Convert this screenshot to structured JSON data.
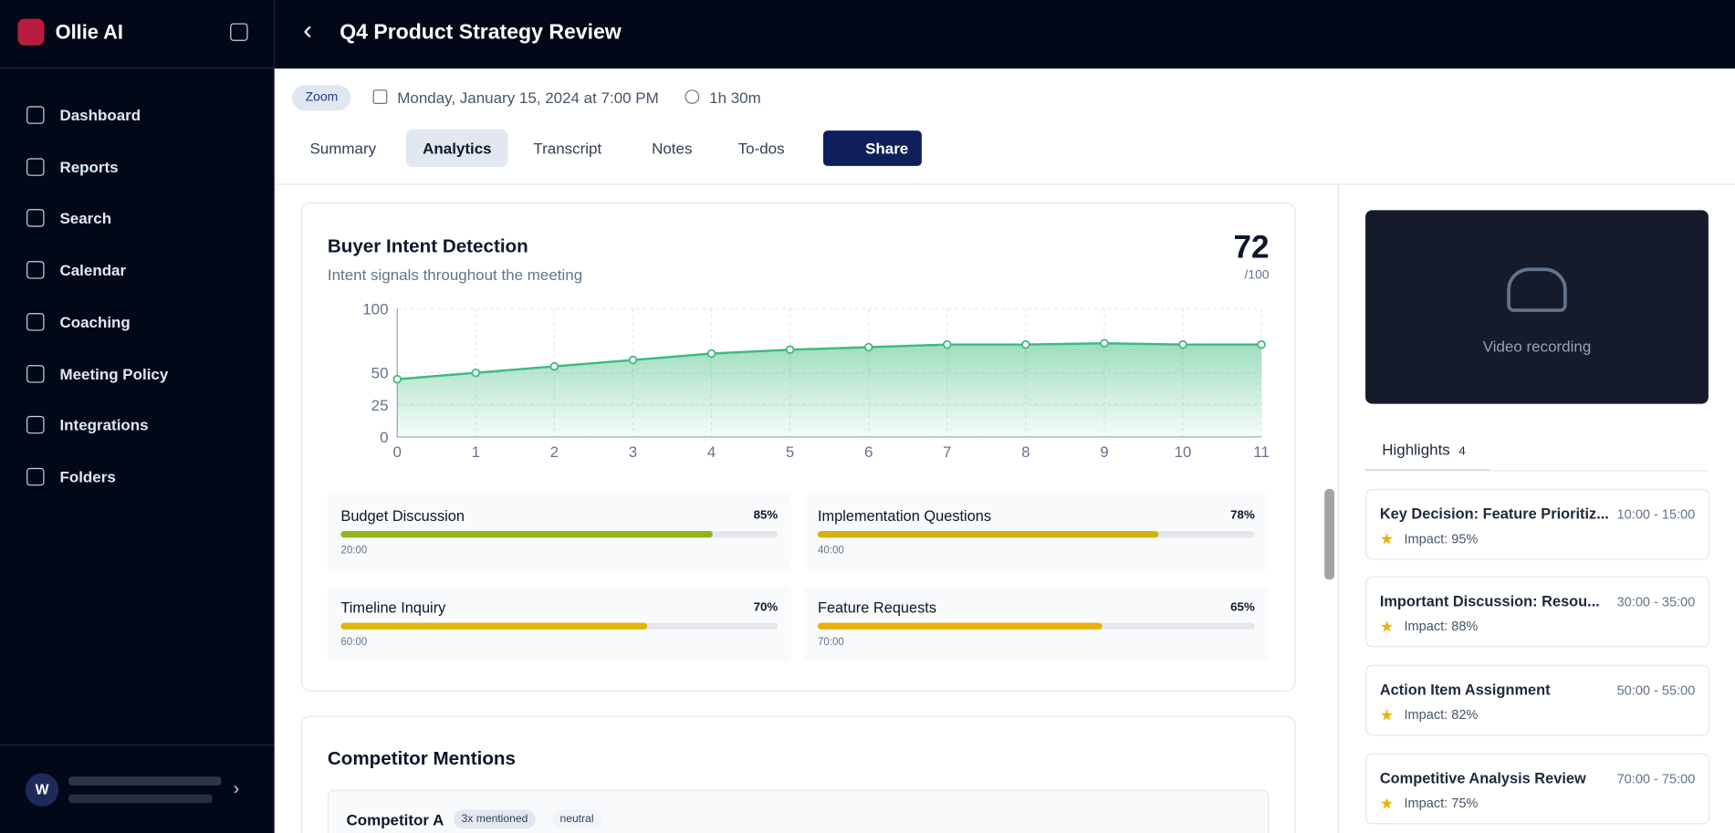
{
  "sidebar": {
    "brand": "Ollie AI",
    "nav": [
      "Dashboard",
      "Reports",
      "Search",
      "Calendar",
      "Coaching",
      "Meeting Policy",
      "Integrations",
      "Folders"
    ],
    "user_initial": "W"
  },
  "header": {
    "title": "Q4 Product Strategy Review",
    "platform": "Zoom",
    "date": "Monday, January 15, 2024 at 7:00 PM",
    "duration": "1h 30m",
    "tabs": [
      "Summary",
      "Analytics",
      "Transcript",
      "Notes",
      "To-dos"
    ],
    "share": "Share"
  },
  "intent": {
    "title": "Buyer Intent Detection",
    "subtitle": "Intent signals throughout the meeting",
    "score": 72,
    "score_max": "/100",
    "chart_data": {
      "type": "area",
      "x": [
        0,
        1,
        2,
        3,
        4,
        5,
        6,
        7,
        8,
        9,
        10,
        11
      ],
      "values": [
        45,
        50,
        55,
        60,
        65,
        68,
        70,
        72,
        72,
        73,
        72,
        72
      ],
      "color": "#3dbb7f",
      "xlim": [
        0,
        11
      ],
      "xticks": [
        0,
        1,
        2,
        3,
        4,
        5,
        6,
        7,
        8,
        9,
        10,
        11
      ],
      "ylim": [
        0,
        100
      ],
      "yticks": [
        0,
        25,
        50,
        100
      ],
      "grid": true
    },
    "metrics": [
      {
        "name": "Budget Discussion",
        "value": 85,
        "value_label": "85%",
        "time": "20:00",
        "color": "#94b31a"
      },
      {
        "name": "Implementation Questions",
        "value": 78,
        "value_label": "78%",
        "time": "40:00",
        "color": "#d4b20c"
      },
      {
        "name": "Timeline Inquiry",
        "value": 70,
        "value_label": "70%",
        "time": "60:00",
        "color": "#e2b30a"
      },
      {
        "name": "Feature Requests",
        "value": 65,
        "value_label": "65%",
        "time": "70:00",
        "color": "#e8b00a"
      }
    ]
  },
  "competitors": {
    "title": "Competitor Mentions",
    "items": [
      {
        "name": "Competitor A",
        "mentions": "3x mentioned",
        "sentiment": "neutral"
      }
    ]
  },
  "panel": {
    "video": "Video recording",
    "highlights_title": "Highlights",
    "highlights_count": 4,
    "highlights": [
      {
        "title": "Key Decision: Feature Prioritiz...",
        "time": "10:00 - 15:00",
        "impact": "Impact: 95%"
      },
      {
        "title": "Important Discussion: Resou...",
        "time": "30:00 - 35:00",
        "impact": "Impact: 88%"
      },
      {
        "title": "Action Item Assignment",
        "time": "50:00 - 55:00",
        "impact": "Impact: 82%"
      },
      {
        "title": "Competitive Analysis Review",
        "time": "70:00 - 75:00",
        "impact": "Impact: 75%"
      }
    ]
  }
}
